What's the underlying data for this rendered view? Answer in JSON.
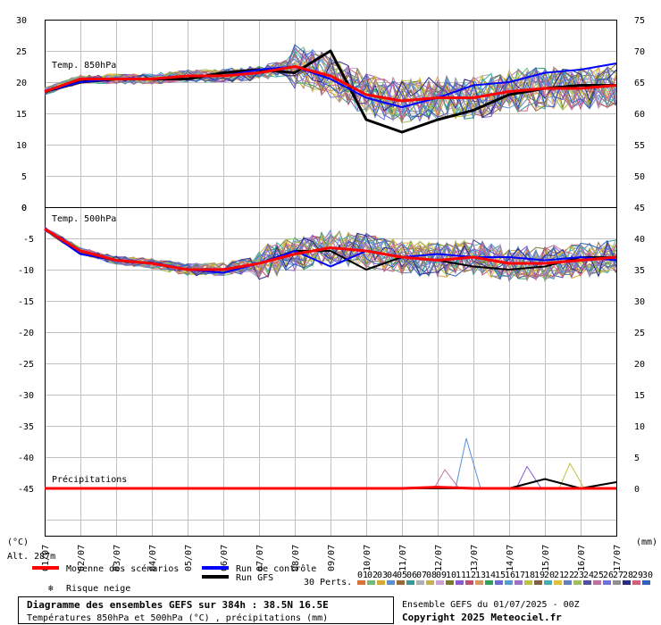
{
  "title_line1": "Diagramme des ensembles GEFS sur 384h : 38.5N 16.5E",
  "title_line2": "Températures 850hPa et 500hPa (°C) , précipitations (mm)",
  "run_info": "Ensemble GEFS du 01/07/2025 - 00Z",
  "copyright": "Copyright 2025 Meteociel.fr",
  "unit_left": "(°C)",
  "unit_right": "(mm)",
  "altitude": "Alt. 287m",
  "legend": {
    "mean": "Moyenne des scénarios",
    "control": "Run de contrôle",
    "gfs": "Run GFS",
    "snow": "Risque neige",
    "perts": "30 Perts."
  },
  "colors": {
    "mean": "#ff0000",
    "control": "#0000ff",
    "gfs": "#000000",
    "grid": "#c0c0c0"
  },
  "pert_labels": [
    "01",
    "02",
    "03",
    "04",
    "05",
    "06",
    "07",
    "08",
    "09",
    "10",
    "11",
    "12",
    "13",
    "14",
    "15",
    "16",
    "17",
    "18",
    "19",
    "20",
    "21",
    "22",
    "23",
    "24",
    "25",
    "26",
    "27",
    "28",
    "29",
    "30"
  ],
  "pert_colors": [
    "#d8743a",
    "#74b87a",
    "#d4a832",
    "#5a8fd6",
    "#9a6b3a",
    "#3a9a9a",
    "#b0b0b0",
    "#c8b050",
    "#d0a0d0",
    "#7a7a2a",
    "#8a5ad0",
    "#c05070",
    "#d89a60",
    "#30a060",
    "#6a6ad0",
    "#50a0d0",
    "#a070c0",
    "#c0c040",
    "#806040",
    "#40b0b0",
    "#e0c040",
    "#6080c0",
    "#a0c060",
    "#5050a0",
    "#c070a0",
    "#7070e0",
    "#909090",
    "#2a2a8a",
    "#d06080",
    "#3060c0"
  ],
  "chart_data": {
    "type": "line",
    "x_dates": [
      "01/07",
      "02/07",
      "03/07",
      "04/07",
      "05/07",
      "06/07",
      "07/07",
      "08/07",
      "09/07",
      "10/07",
      "11/07",
      "12/07",
      "13/07",
      "14/07",
      "15/07",
      "16/07",
      "17/07"
    ],
    "panels": [
      {
        "label": "Temp. 850hPa",
        "left_ticks": [
          "30",
          "25",
          "20",
          "15",
          "10",
          "5",
          "0"
        ],
        "right_ticks": [
          "75",
          "70",
          "65",
          "60",
          "55",
          "50",
          "45"
        ],
        "ylim": [
          0,
          30
        ],
        "mean": [
          18.5,
          20.5,
          20.5,
          20.5,
          21.0,
          21.0,
          21.5,
          22.5,
          21.0,
          18.0,
          17.0,
          17.5,
          17.5,
          18.5,
          19.0,
          19.0,
          19.5
        ],
        "control": [
          18.5,
          20.0,
          20.5,
          20.5,
          21.0,
          21.0,
          22.0,
          22.5,
          20.5,
          17.5,
          16.0,
          17.5,
          19.5,
          20.0,
          21.5,
          22.0,
          23.0
        ],
        "gfs": [
          18.5,
          20.0,
          20.5,
          20.5,
          20.5,
          21.5,
          22.0,
          21.5,
          25.0,
          14.0,
          12.0,
          14.0,
          15.5,
          18.0,
          19.0,
          19.5,
          19.5
        ]
      },
      {
        "label": "Temp. 500hPa",
        "left_ticks": [
          "0",
          "-5",
          "-10",
          "-15",
          "-20",
          "-25",
          "-30",
          "-35",
          "-40",
          "-45"
        ],
        "right_ticks": [
          "45",
          "40",
          "35",
          "30",
          "25",
          "20",
          "15",
          "10",
          "5",
          "0"
        ],
        "ylim": [
          -45,
          0
        ],
        "mean": [
          -3.5,
          -7.0,
          -8.5,
          -9.0,
          -10.0,
          -10.0,
          -9.0,
          -7.5,
          -6.5,
          -7.0,
          -8.0,
          -8.5,
          -8.0,
          -9.0,
          -9.0,
          -8.5,
          -8.0
        ],
        "control": [
          -3.5,
          -7.5,
          -8.5,
          -9.0,
          -10.0,
          -10.5,
          -9.0,
          -7.0,
          -9.5,
          -7.0,
          -8.0,
          -7.5,
          -8.0,
          -8.0,
          -8.5,
          -8.0,
          -8.5
        ],
        "gfs": [
          -3.5,
          -7.5,
          -8.5,
          -9.0,
          -10.0,
          -10.0,
          -9.0,
          -7.0,
          -7.0,
          -10.0,
          -8.0,
          -8.5,
          -9.5,
          -10.0,
          -9.5,
          -8.0,
          -8.0
        ]
      },
      {
        "label": "Précipitations",
        "ylim_mm": [
          0,
          45
        ],
        "mean": [
          0,
          0,
          0,
          0,
          0,
          0,
          0,
          0,
          0,
          0,
          0,
          0.2,
          0,
          0,
          0,
          0,
          0
        ],
        "gfs": [
          0,
          0,
          0,
          0,
          0,
          0,
          0,
          0,
          0,
          0,
          0,
          0,
          0,
          0,
          1.5,
          0,
          1.0
        ],
        "peaks": [
          {
            "x": 11.8,
            "value": 8.0
          },
          {
            "x": 13.5,
            "value": 3.5
          },
          {
            "x": 14.7,
            "value": 4.0
          },
          {
            "x": 11.2,
            "value": 3.0
          }
        ]
      }
    ]
  }
}
